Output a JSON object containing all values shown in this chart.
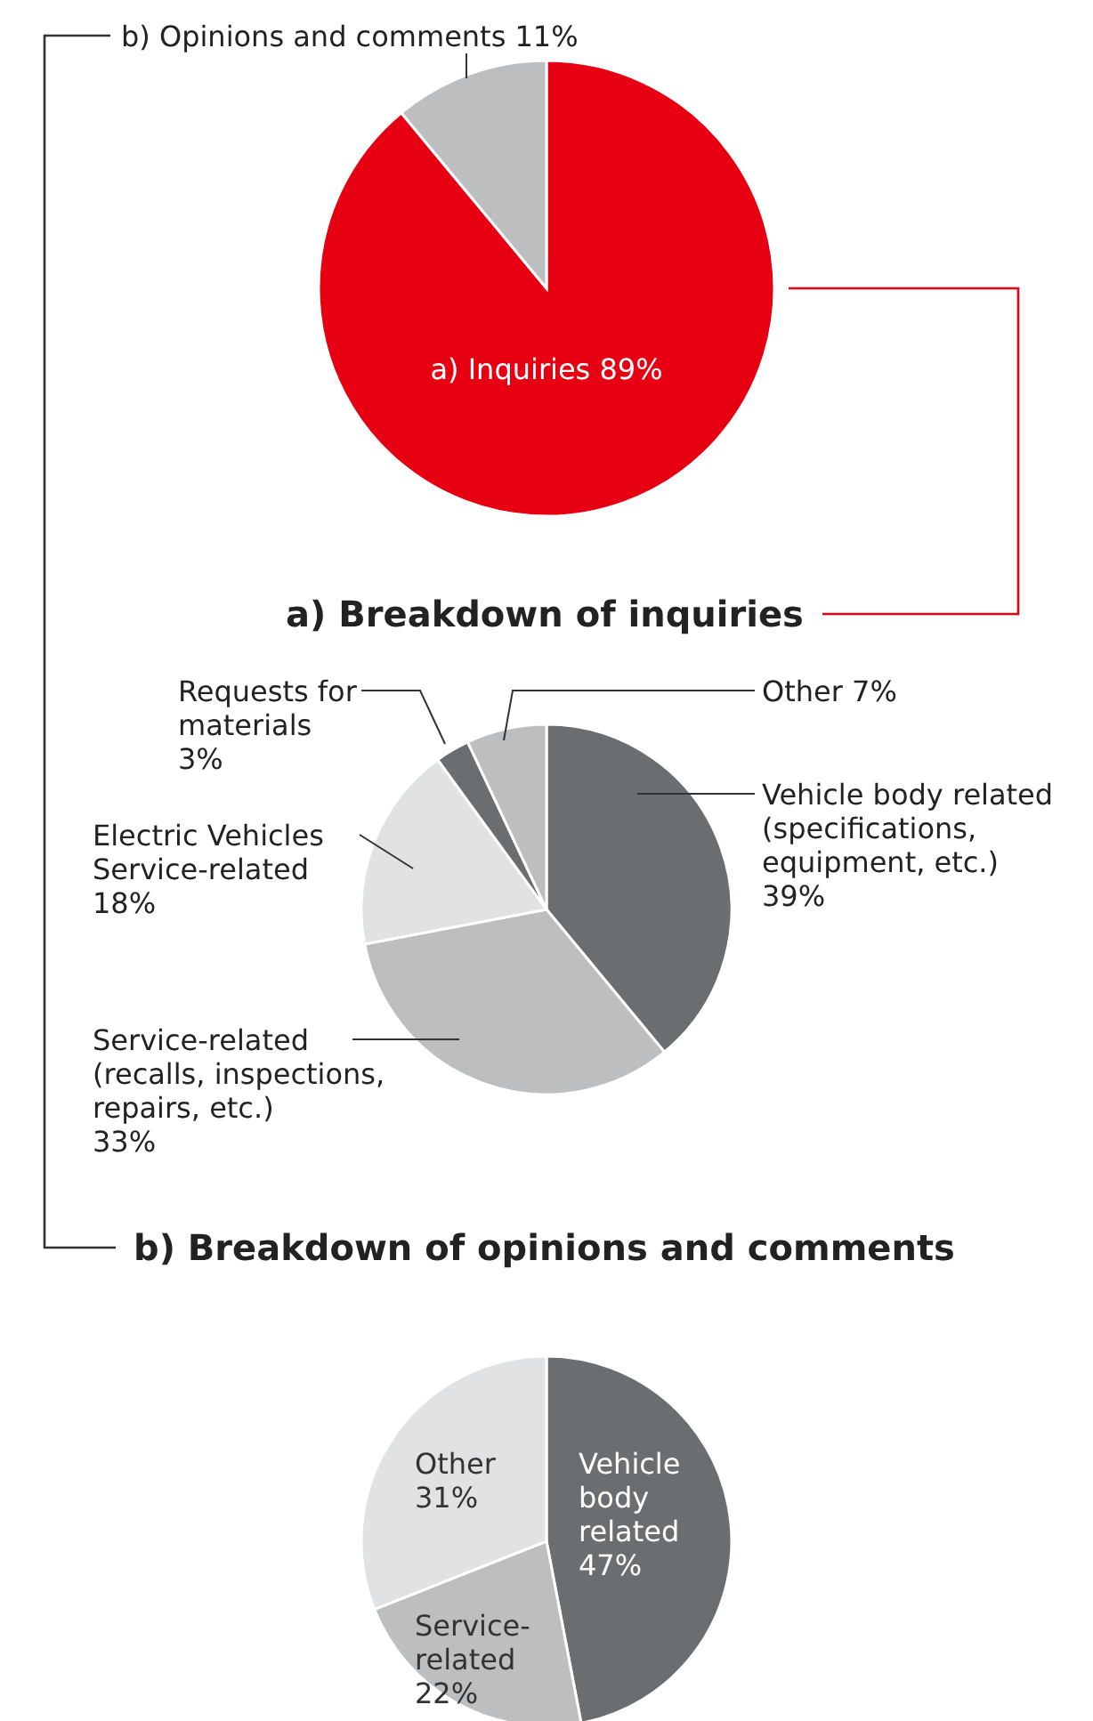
{
  "chart_data": [
    {
      "type": "pie",
      "categories": [
        "a) Inquiries",
        "b) Opinions and comments"
      ],
      "values": [
        89,
        11
      ],
      "colors": [
        "#e60012",
        "#bcbec0"
      ],
      "value_labels": [
        "89%",
        "11%"
      ]
    },
    {
      "type": "pie",
      "title": "a) Breakdown of inquiries",
      "categories": [
        "Vehicle body related\n(specifications,\nequipment, etc.)",
        "Service-related\n(recalls, inspections,\nrepairs, etc.)",
        "Electric Vehicles\nService-related",
        "Requests for\nmaterials",
        "Other"
      ],
      "values": [
        39,
        33,
        18,
        3,
        7
      ],
      "colors": [
        "#6b6e70",
        "#bcbec0",
        "#e1e2e3",
        "#6b6e70",
        "#bcbec0"
      ],
      "value_labels": [
        "39%",
        "33%",
        "18%",
        "3%",
        "7%"
      ]
    },
    {
      "type": "pie",
      "title": "b) Breakdown of opinions and comments",
      "categories": [
        "Vehicle\nbody\nrelated",
        "Service-\nrelated",
        "Other"
      ],
      "values": [
        47,
        22,
        31
      ],
      "colors": [
        "#6b6e70",
        "#bcbec0",
        "#e1e2e3"
      ],
      "value_labels": [
        "47%",
        "22%",
        "31%"
      ]
    }
  ]
}
